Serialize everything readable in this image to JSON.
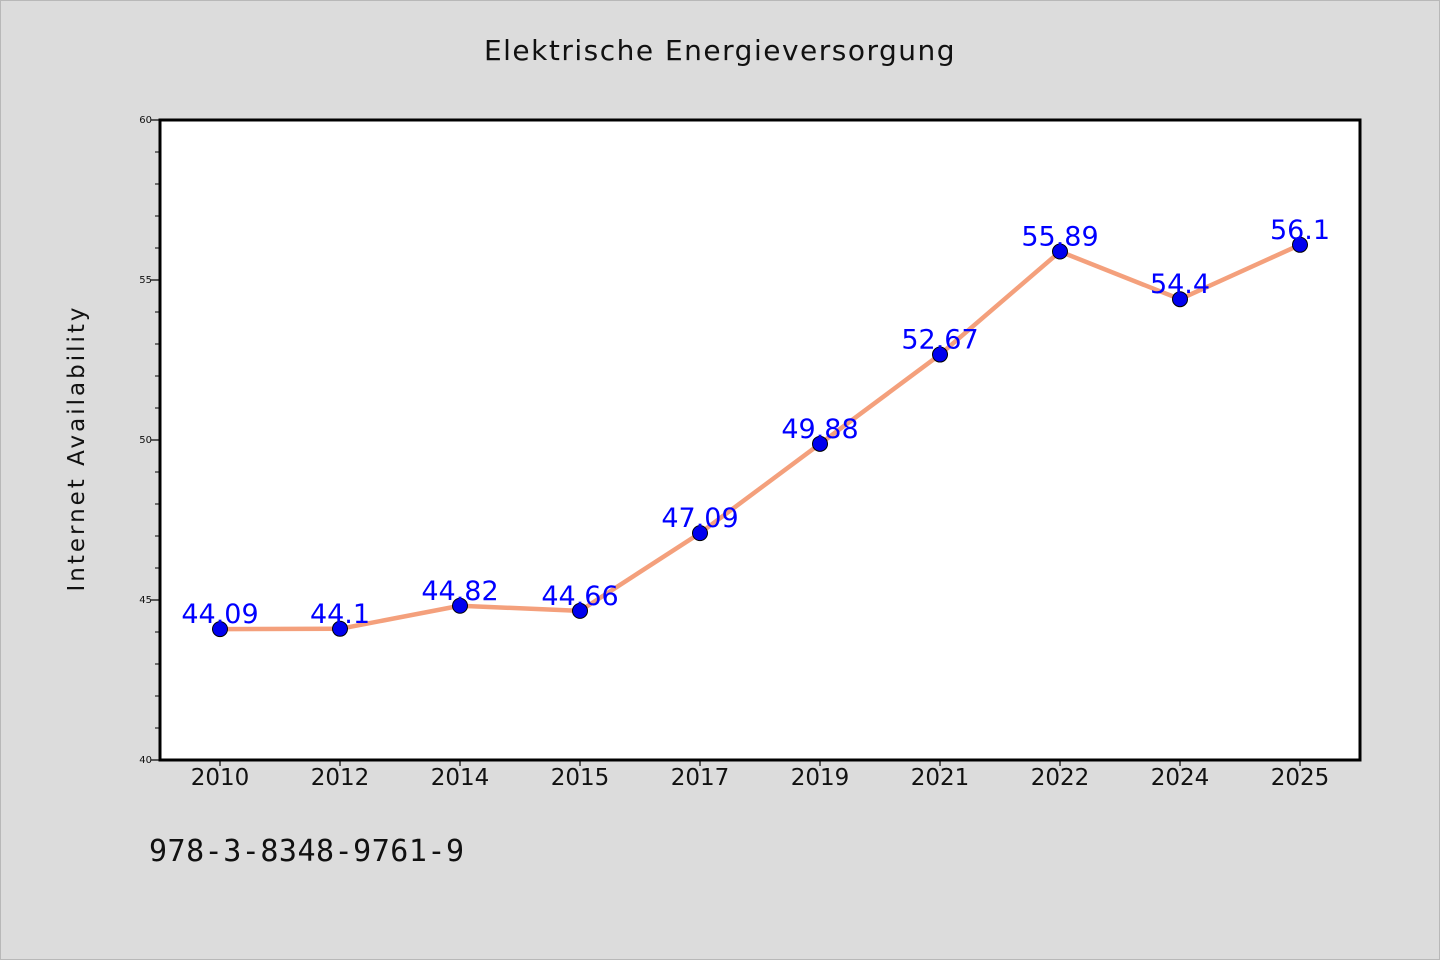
{
  "chart_data": {
    "type": "line",
    "title": "Elektrische Energieversorgung",
    "xlabel": "",
    "ylabel": "Internet Availability",
    "categories": [
      "2010",
      "2012",
      "2014",
      "2015",
      "2017",
      "2019",
      "2021",
      "2022",
      "2024",
      "2025"
    ],
    "series": [
      {
        "values": [
          44.09,
          44.1,
          44.82,
          44.66,
          47.09,
          49.88,
          52.67,
          55.89,
          54.4,
          56.1
        ],
        "data_labels": [
          "44.09",
          "44.1",
          "44.82",
          "44.66",
          "47.09",
          "49.88",
          "52.67",
          "55.89",
          "54.4",
          "56.1"
        ]
      }
    ],
    "ylim": [
      40,
      60
    ],
    "yticks": [
      "40",
      "45",
      "50",
      "55",
      "60"
    ],
    "y_minor_step": 1,
    "grid": false,
    "colors": {
      "line": "#f4a07c",
      "marker": "#0000ee",
      "data_label": "#0000ff",
      "plot_background": "#ffffff",
      "figure_background": "#dcdcdc"
    }
  },
  "footnote": "978-3-8348-9761-9"
}
